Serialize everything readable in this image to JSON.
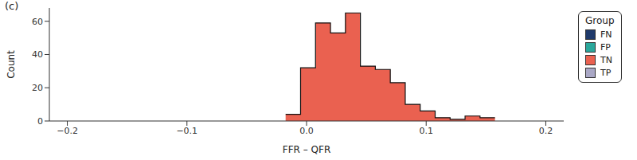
{
  "chart_data": {
    "type": "histogram",
    "title": "(c)",
    "x_label": "FFR – QFR",
    "y_label": "Count",
    "legend_title": "Group",
    "legend": "right",
    "bins": [
      -0.0175,
      -0.005,
      0.0075,
      0.02,
      0.0325,
      0.045,
      0.0575,
      0.07,
      0.0825,
      0.095,
      0.1075,
      0.12,
      0.1325,
      0.145,
      0.1575
    ],
    "series": [
      {
        "name": "FN",
        "color": "#1f3a6b",
        "values": [
          0,
          0,
          0,
          0,
          0,
          0,
          0,
          0,
          0,
          0,
          0,
          0,
          0,
          0
        ]
      },
      {
        "name": "FP",
        "color": "#2aa79b",
        "values": [
          0,
          0,
          0,
          0,
          0,
          0,
          0,
          0,
          0,
          0,
          0,
          0,
          0,
          0
        ]
      },
      {
        "name": "TN",
        "color": "#ea6150",
        "values": [
          4,
          32,
          59,
          53,
          65,
          33,
          31,
          23,
          10,
          6,
          2,
          1,
          3,
          2
        ]
      },
      {
        "name": "TP",
        "color": "#aaa8c6",
        "values": [
          0,
          0,
          0,
          0,
          0,
          0,
          0,
          0,
          0,
          0,
          0,
          0,
          0,
          0
        ]
      }
    ],
    "xlim": [
      -0.215,
      0.215
    ],
    "xticks": [
      {
        "value": -0.2,
        "label": "−0.2"
      },
      {
        "value": -0.1,
        "label": "−0.1"
      },
      {
        "value": 0,
        "label": "0.0"
      },
      {
        "value": 0.1,
        "label": "0.1"
      },
      {
        "value": 0.2,
        "label": "0.2"
      }
    ],
    "ylim": [
      0,
      68
    ],
    "yticks": [
      0,
      20,
      40,
      60
    ]
  }
}
